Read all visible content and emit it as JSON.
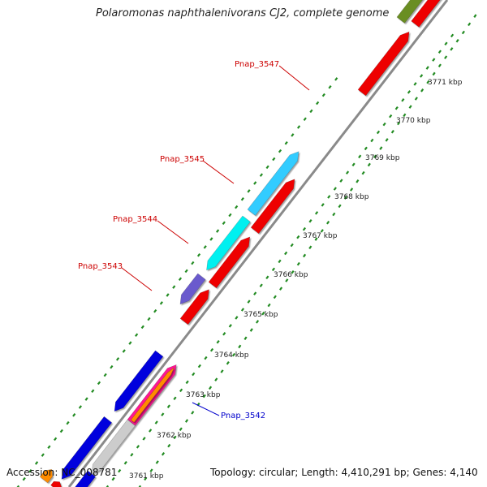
{
  "header": {
    "title": "Polaromonas naphthalenivorans CJ2, complete genome"
  },
  "footer": {
    "accession": "Accession: NC_008781",
    "summary": "Topology: circular; Length: 4,410,291 bp; Genes: 4,140"
  },
  "ticks": [
    {
      "label": "3761 kbp"
    },
    {
      "label": "3762 kbp"
    },
    {
      "label": "3763 kbp"
    },
    {
      "label": "3764 kbp"
    },
    {
      "label": "3765 kbp"
    },
    {
      "label": "3766 kbp"
    },
    {
      "label": "3767 kbp"
    },
    {
      "label": "3768 kbp"
    },
    {
      "label": "3769 kbp"
    },
    {
      "label": "3770 kbp"
    },
    {
      "label": "3771 kbp"
    }
  ],
  "gene_labels": [
    {
      "label": "Pnap_3547",
      "color": "#cc0000"
    },
    {
      "label": "Pnap_3545",
      "color": "#cc0000"
    },
    {
      "label": "Pnap_3544",
      "color": "#cc0000"
    },
    {
      "label": "Pnap_3543",
      "color": "#cc0000"
    },
    {
      "label": "Pnap_3542",
      "color": "#0000cc"
    }
  ],
  "colors": {
    "backbone": "#8a8a8a",
    "tick": "#228b22",
    "cds_red": "#ee0000",
    "cds_blue": "#0000dd",
    "cds_cyan_a": "#33ccff",
    "cds_cyan_b": "#00f0f0",
    "cds_purple": "#6a5acd",
    "cds_olive": "#6b8e23",
    "cds_grey": "#cccccc",
    "cds_teal": "#33ddaa",
    "cds_orange": "#ff8c00",
    "cds_magenta": "#ff1493"
  }
}
